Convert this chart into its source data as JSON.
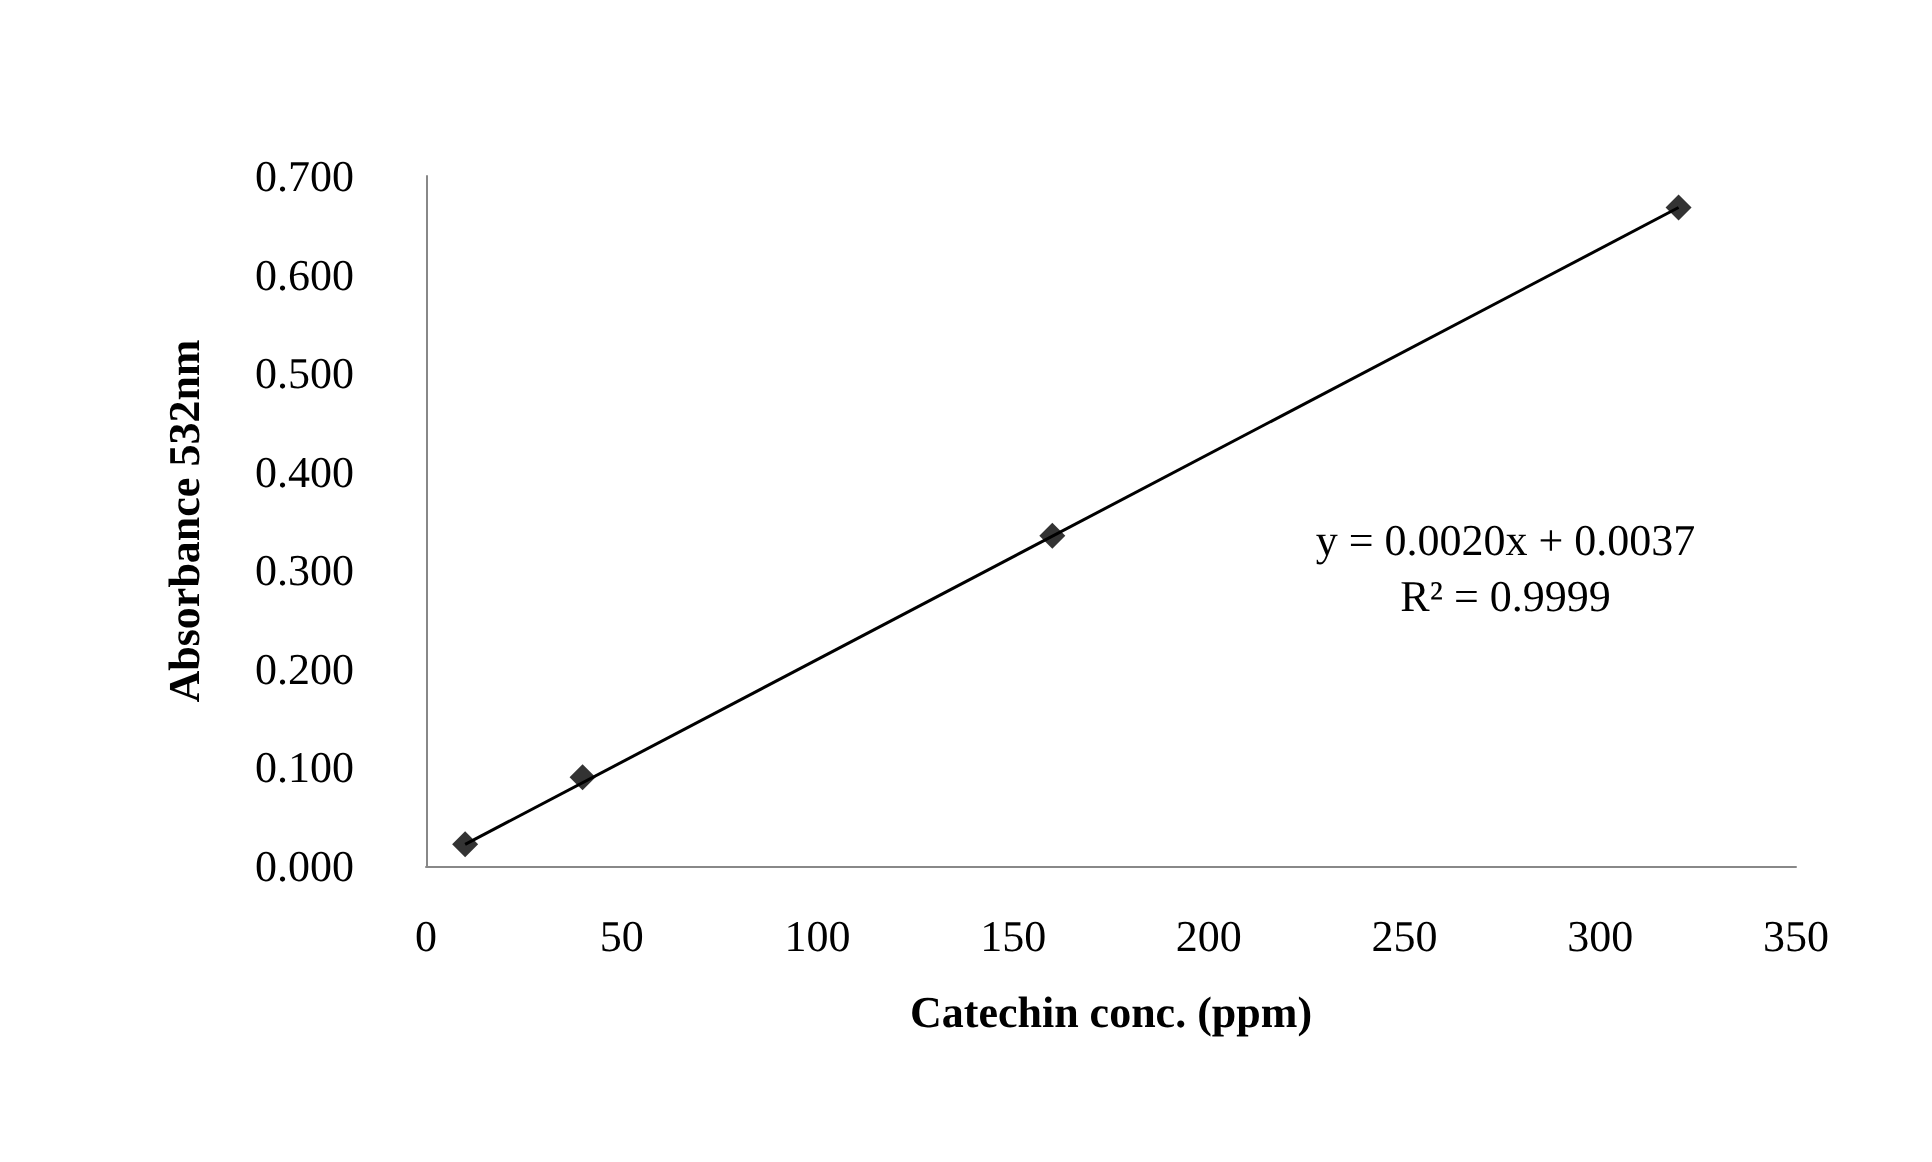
{
  "chart_data": {
    "type": "scatter",
    "xlabel": "Catechin conc. (ppm)",
    "ylabel": "Absorbance 532nm",
    "series": [
      {
        "type": "scatter",
        "color": "#000000",
        "marker": "diamond",
        "x": [
          10,
          40,
          160,
          320
        ],
        "values": [
          0.022,
          0.09,
          0.335,
          0.668
        ]
      },
      {
        "type": "line",
        "color": "#000000",
        "marker": "none",
        "line_style": "solid",
        "x": [
          10,
          320
        ],
        "values": [
          0.022,
          0.668
        ]
      }
    ],
    "annotations": [
      "y = 0.0020x + 0.0037",
      "R² = 0.9999"
    ],
    "xlim": [
      0,
      350
    ],
    "xticks": [
      0,
      50,
      100,
      150,
      200,
      250,
      300,
      350
    ],
    "ylim": [
      0,
      0.7
    ],
    "yticks": [
      {
        "value": 0,
        "label": "0.000"
      },
      {
        "value": 0.1,
        "label": "0.100"
      },
      {
        "value": 0.2,
        "label": "0.200"
      },
      {
        "value": 0.3,
        "label": "0.300"
      },
      {
        "value": 0.4,
        "label": "0.400"
      },
      {
        "value": 0.5,
        "label": "0.500"
      },
      {
        "value": 0.6,
        "label": "0.600"
      },
      {
        "value": 0.7,
        "label": "0.700"
      }
    ],
    "grid": false
  }
}
